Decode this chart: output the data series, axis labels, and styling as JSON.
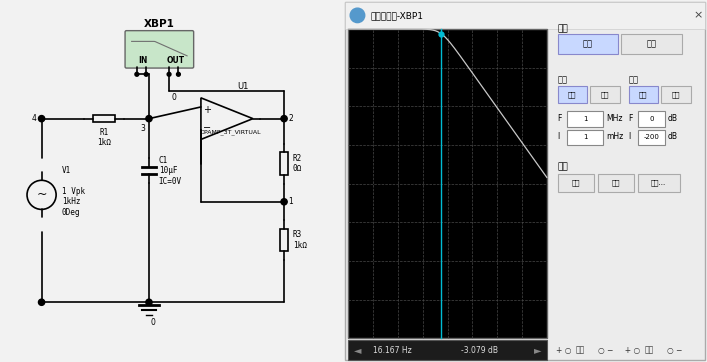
{
  "bg_color": "#f2f2f2",
  "circuit_bg": "#ffffff",
  "col": "#000000",
  "scope": {
    "title": "波特显示仪-XBP1",
    "plot_bg": "#000000",
    "grid_color": "#555555",
    "cursor_color": "#00bcd4",
    "trace_color": "#c8c8c8",
    "window_bg": "#ececec",
    "mode_label": "模式",
    "amplitude_btn": "幅度",
    "phase_btn": "相位",
    "horizontal_label": "水平",
    "vertical_label": "垂直",
    "log_h": "对数",
    "lin_h": "线性",
    "log_v": "对数",
    "lin_v": "线性",
    "f_max_value": "1",
    "f_max_unit": "MHz",
    "i_min_value": "1",
    "i_min_unit": "mHz",
    "v_f_value": "0",
    "v_f_unit": "dB",
    "v_i_value": "-200",
    "v_i_unit": "dB",
    "control_label": "控制",
    "btn_back": "后退",
    "btn_save": "保存",
    "btn_settings": "设置...",
    "cursor_freq_str": "16.167 Hz",
    "cursor_db_str": "-3.079 dB",
    "input_label": "输入",
    "output_label": "输出",
    "cursor_freq": 16.167,
    "fc": 16.0,
    "log_fmin": -3,
    "log_fmax": 6,
    "db_min": -200,
    "db_max": 0
  }
}
